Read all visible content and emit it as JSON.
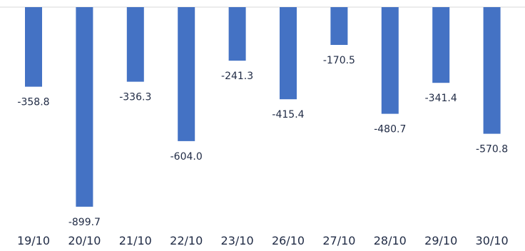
{
  "chart_data": {
    "type": "bar",
    "categories": [
      "19/10",
      "20/10",
      "21/10",
      "22/10",
      "23/10",
      "26/10",
      "27/10",
      "28/10",
      "29/10",
      "30/10"
    ],
    "values": [
      -358.8,
      -899.7,
      -336.3,
      -604.0,
      -241.3,
      -415.4,
      -170.5,
      -480.7,
      -341.4,
      -570.8
    ],
    "value_labels": [
      "-358.8",
      "-899.7",
      "-336.3",
      "-604.0",
      "-241.3",
      "-415.4",
      "-170.5",
      "-480.7",
      "-341.4",
      "-570.8"
    ],
    "title": "",
    "xlabel": "",
    "ylabel": "",
    "ylim": [
      -900,
      0
    ],
    "grid": false,
    "legend": "none",
    "bar_color": "#4472C4",
    "text_color": "#1F2A44"
  }
}
